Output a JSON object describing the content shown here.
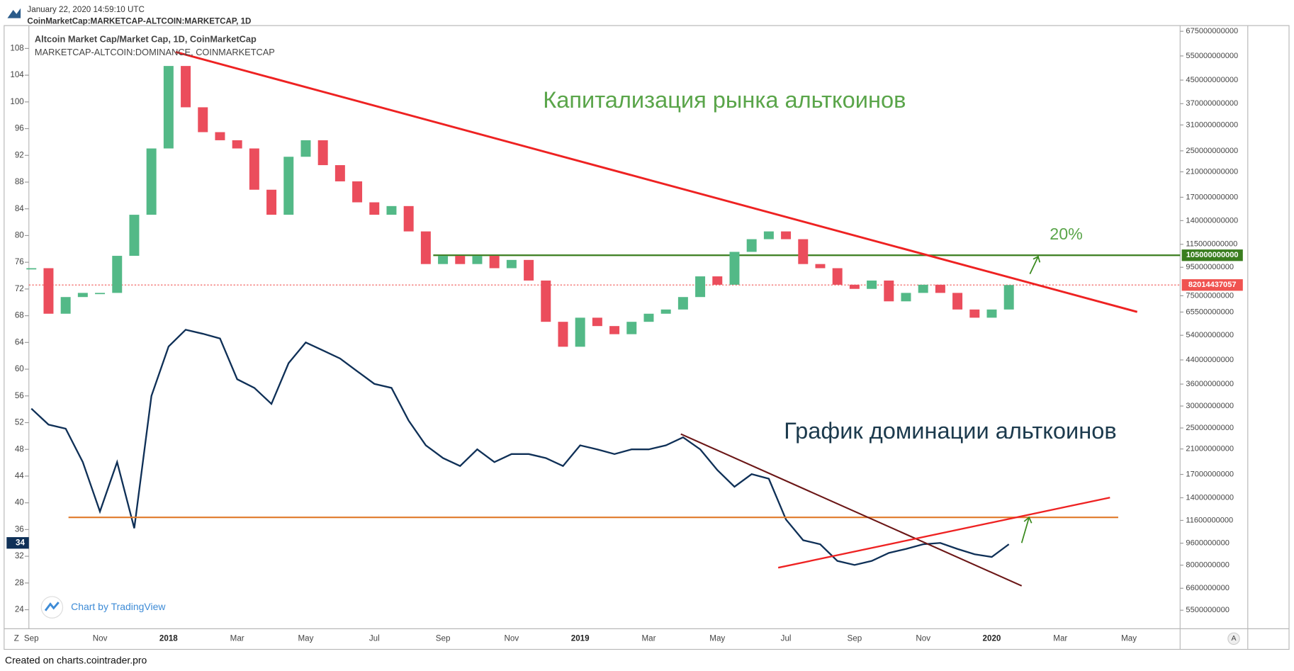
{
  "header": {
    "date": "January 22, 2020 14:59:10 UTC",
    "symbol": "CoinMarketCap:MARKETCAP-ALTCOIN:MARKETCAP, 1D"
  },
  "footer": "Created on charts.cointrader.pro",
  "watermark": "Chart by TradingView",
  "axis_buttons": [
    "Z",
    "A"
  ],
  "chart_data": {
    "type": "candlestick_line",
    "title": "Altcoin Market Cap/Market Cap, 1D, CoinMarketCap",
    "subtitle": "MARKETCAP-ALTCOIN:DOMINANCE, COINMARKETCAP",
    "annotations": [
      {
        "text": "Капитализация рынка альткоинов",
        "color": "#5aa54a"
      },
      {
        "text": "График доминации альткоинов",
        "color": "#1c3a4d"
      },
      {
        "text": "20%",
        "color": "#5aa54a"
      }
    ],
    "categories": [
      "Sep",
      null,
      null,
      null,
      "Nov",
      null,
      null,
      null,
      "2018",
      null,
      null,
      null,
      "Mar",
      null,
      null,
      null,
      "May",
      null,
      null,
      null,
      "Jul",
      null,
      null,
      null,
      "Sep",
      null,
      null,
      null,
      "Nov",
      null,
      null,
      null,
      "2019",
      null,
      null,
      null,
      "Mar",
      null,
      null,
      null,
      "May",
      null,
      null,
      null,
      "Jul",
      null,
      null,
      null,
      "Sep",
      null,
      null,
      null,
      "Nov",
      null,
      null,
      null,
      "2020",
      null,
      null,
      null,
      "Mar",
      null,
      null,
      null,
      "May"
    ],
    "series": [
      {
        "type": "candlestick",
        "axis": "y2",
        "up_color": "#53b987",
        "down_color": "#eb4d5c",
        "values": [
          94300000000,
          64600000000,
          74200000000,
          76800000000,
          76800000000,
          104500000000,
          147000000000,
          255000000000,
          506000000000,
          359000000000,
          292000000000,
          273000000000,
          255000000000,
          181000000000,
          147000000000,
          238000000000,
          273000000000,
          222000000000,
          194000000000,
          163000000000,
          147000000000,
          158000000000,
          128000000000,
          97600000000,
          104500000000,
          97600000000,
          104500000000,
          94300000000,
          101000000000,
          85100000000,
          60400000000,
          49100000000,
          62500000000,
          58300000000,
          54500000000,
          60400000000,
          64600000000,
          66900000000,
          74200000000,
          88100000000,
          82200000000,
          108000000000,
          120000000000,
          128000000000,
          120000000000,
          97600000000,
          94300000000,
          82200000000,
          79400000000,
          85100000000,
          71600000000,
          76800000000,
          82200000000,
          76800000000,
          66900000000,
          62500000000,
          66900000000,
          82000000000,
          null,
          null,
          null,
          null,
          null,
          null,
          null
        ]
      },
      {
        "type": "line",
        "axis": "y",
        "color": "#0f3057",
        "last_value": 34,
        "values": [
          54.1,
          51.7,
          51.1,
          46.1,
          38.7,
          46.1,
          36.2,
          56.0,
          63.4,
          65.9,
          65.3,
          64.6,
          58.5,
          57.2,
          54.8,
          60.9,
          64.0,
          62.8,
          61.6,
          59.7,
          57.8,
          57.2,
          52.3,
          48.6,
          46.7,
          45.5,
          48.0,
          46.1,
          47.3,
          47.3,
          46.7,
          45.5,
          48.6,
          48.0,
          47.3,
          48.0,
          48.0,
          48.6,
          49.8,
          48.0,
          44.9,
          42.4,
          44.3,
          43.6,
          37.5,
          34.4,
          33.8,
          31.3,
          30.7,
          31.3,
          32.5,
          33.1,
          33.8,
          34.0,
          33.1,
          32.3,
          31.9,
          33.8,
          null,
          null,
          null,
          null,
          null,
          null,
          null
        ]
      }
    ],
    "ylim": [
      21.4,
      111.3
    ],
    "yticks": [
      24,
      28,
      32,
      36,
      40,
      44,
      48,
      52,
      56,
      60,
      64,
      68,
      72,
      76,
      80,
      84,
      88,
      92,
      96,
      100,
      104,
      108
    ],
    "y2lim": [
      4780000000,
      703000000000
    ],
    "y2_log": true,
    "y2ticks": [
      675000000000,
      550000000000,
      450000000000,
      370000000000,
      310000000000,
      250000000000,
      210000000000,
      170000000000,
      140000000000,
      115000000000,
      95000000000,
      75000000000,
      65500000000,
      54000000000,
      44000000000,
      36000000000,
      30000000000,
      25000000000,
      21000000000,
      17000000000,
      14000000000,
      11600000000,
      9600000000,
      8000000000,
      6600000000,
      5500000000
    ],
    "price_lines": [
      {
        "value": 105000000000,
        "color": "#3a7d1e"
      },
      {
        "value": 82014437057,
        "color": "#f05350"
      }
    ]
  }
}
